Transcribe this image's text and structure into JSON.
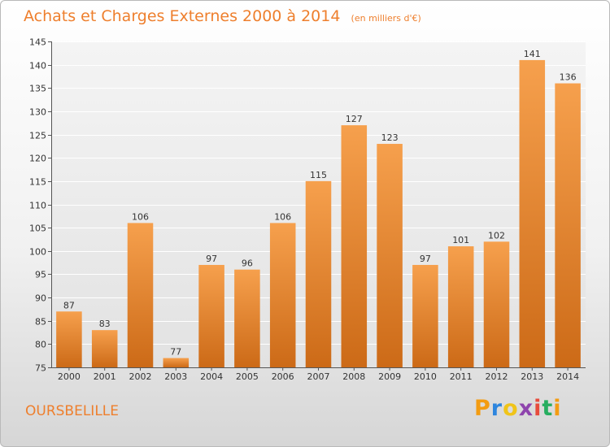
{
  "header": {
    "title": "Achats et Charges Externes 2000 à 2014",
    "subtitle": "(en milliers d'€)"
  },
  "footer": {
    "commune": "OURSBELILLE",
    "brand_letters": [
      "P",
      "r",
      "o",
      "x",
      "i",
      "t",
      "i"
    ],
    "brand_colors": [
      "#f39c12",
      "#2e86de",
      "#f0c419",
      "#8e44ad",
      "#e74c3c",
      "#27ae60",
      "#f39c12"
    ]
  },
  "chart_data": {
    "type": "bar",
    "title": "Achats et Charges Externes 2000 à 2014",
    "subtitle": "(en milliers d'€)",
    "categories": [
      "2000",
      "2001",
      "2002",
      "2003",
      "2004",
      "2005",
      "2006",
      "2007",
      "2008",
      "2009",
      "2010",
      "2011",
      "2012",
      "2013",
      "2014"
    ],
    "values": [
      87,
      83,
      106,
      77,
      97,
      96,
      106,
      115,
      127,
      123,
      97,
      101,
      102,
      141,
      136
    ],
    "ylim": [
      75,
      145
    ],
    "yticks": [
      75,
      80,
      85,
      90,
      95,
      100,
      105,
      110,
      115,
      120,
      125,
      130,
      135,
      140,
      145
    ],
    "grid": true,
    "bar_color_top": "#f6a04d",
    "bar_color_bottom": "#cc6a17"
  }
}
